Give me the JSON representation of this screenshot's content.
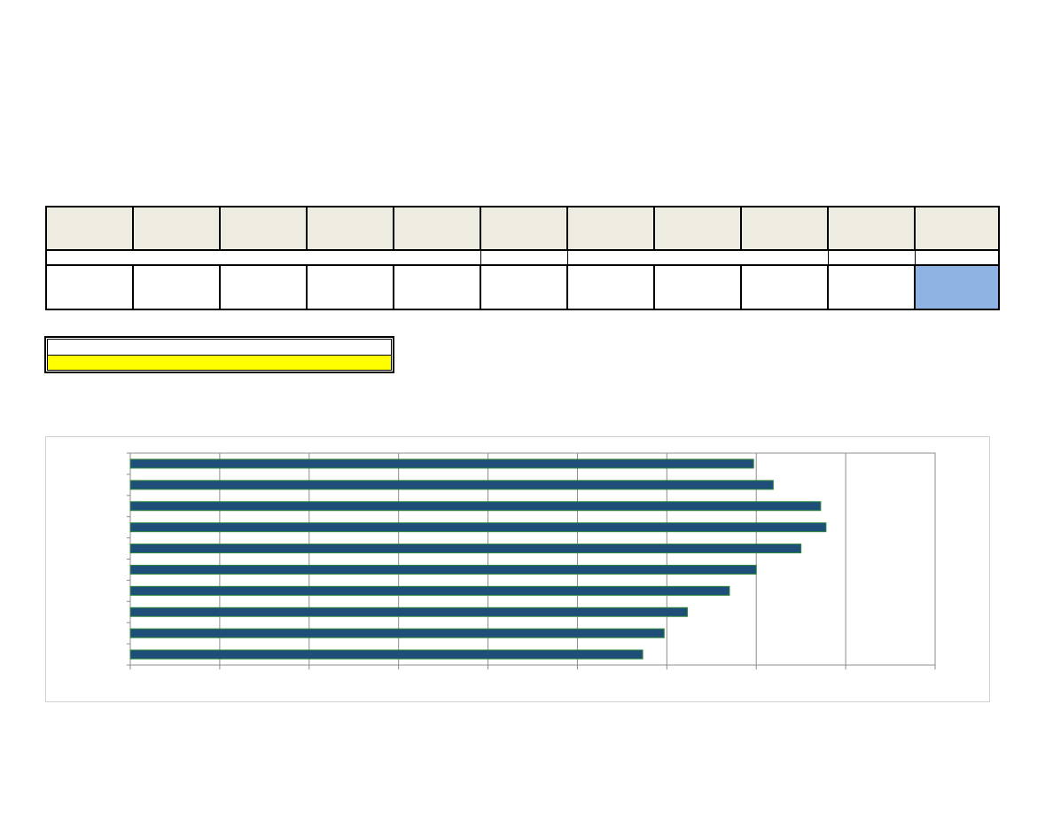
{
  "colors": {
    "header_fill": "#eeebe0",
    "highlight_fill": "#8fb4e3",
    "legend_fill": "#ffff00",
    "bar_fill": "#1f4e79",
    "bar_stroke": "#2e8b3a"
  },
  "table": {
    "columns": 11,
    "highlighted_column": 11
  },
  "chart_data": {
    "type": "bar",
    "orientation": "horizontal",
    "title": "",
    "xlabel": "",
    "ylabel": "",
    "xlim": [
      0,
      9
    ],
    "grid": "vertical",
    "categories": [
      "",
      "",
      "",
      "",
      "",
      "",
      "",
      "",
      "",
      ""
    ],
    "values": [
      6.97,
      7.19,
      7.72,
      7.78,
      7.5,
      7.0,
      6.7,
      6.23,
      5.97,
      5.73
    ]
  }
}
